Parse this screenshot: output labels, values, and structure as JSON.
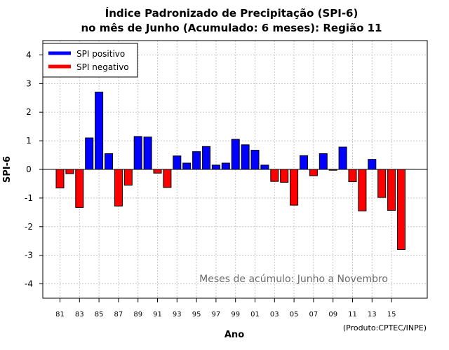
{
  "chart_data": {
    "type": "bar",
    "title_line1": "Índice Padronizado de Precipitação (SPI-6)",
    "title_line2": "no mês de Junho (Acumulado: 6 meses): Região 11",
    "xlabel": "Ano",
    "ylabel": "SPI-6",
    "ylim": [
      -4.5,
      4.5
    ],
    "yticks": [
      -4,
      -3,
      -2,
      -1,
      0,
      1,
      2,
      3,
      4
    ],
    "ytick_labels": [
      "-4",
      "-3",
      "-2",
      "-1",
      "0",
      "1",
      "2",
      "3",
      "4"
    ],
    "grid": true,
    "legend": [
      {
        "label": "SPI positivo",
        "color": "#0000ff"
      },
      {
        "label": "SPI negativo",
        "color": "#ff0000"
      }
    ],
    "legend_position": "top-left",
    "annotation": "Meses de acúmulo: Junho a Novembro",
    "credit": "(Produto:CPTEC/INPE)",
    "xtick_labels": [
      "81",
      "83",
      "85",
      "87",
      "89",
      "91",
      "93",
      "95",
      "97",
      "99",
      "01",
      "03",
      "05",
      "07",
      "09",
      "11",
      "13",
      "15"
    ],
    "categories": [
      "1981",
      "1982",
      "1983",
      "1984",
      "1985",
      "1986",
      "1987",
      "1988",
      "1989",
      "1990",
      "1991",
      "1992",
      "1993",
      "1994",
      "1995",
      "1996",
      "1997",
      "1998",
      "1999",
      "2000",
      "2001",
      "2002",
      "2003",
      "2004",
      "2005",
      "2006",
      "2007",
      "2008",
      "2009",
      "2010",
      "2011",
      "2012",
      "2013",
      "2014",
      "2015",
      "2016"
    ],
    "values": [
      -0.65,
      -0.15,
      -1.33,
      1.1,
      2.7,
      0.55,
      -1.28,
      -0.55,
      1.15,
      1.13,
      -0.13,
      -0.63,
      0.47,
      0.22,
      0.62,
      0.8,
      0.15,
      0.22,
      1.05,
      0.86,
      0.67,
      0.15,
      -0.42,
      -0.45,
      -1.25,
      0.48,
      -0.22,
      0.55,
      -0.03,
      0.78,
      -0.43,
      -1.45,
      0.35,
      -0.98,
      -1.43,
      -2.8
    ],
    "positive_color": "#0000ff",
    "negative_color": "#ff0000",
    "grid_color": "#c8c8c8"
  }
}
